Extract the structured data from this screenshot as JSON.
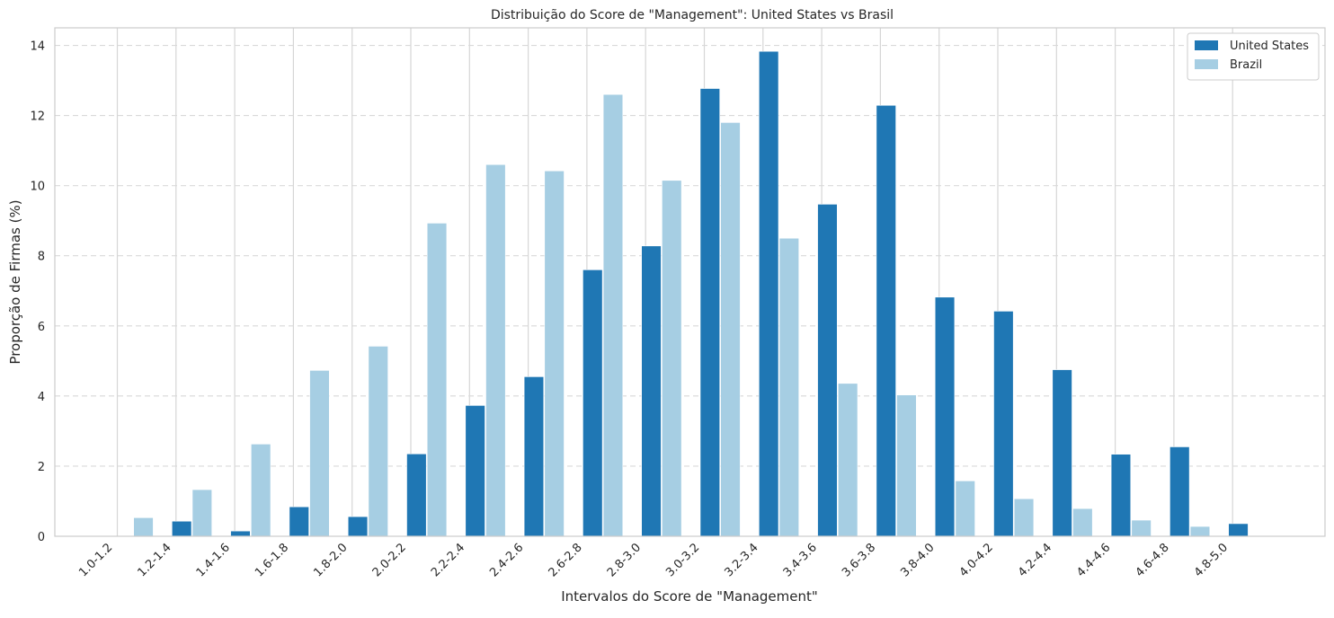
{
  "chart_data": {
    "type": "bar",
    "title": "Distribuição do Score de \"Management\": United States vs Brasil",
    "xlabel": "Intervalos do Score de \"Management\"",
    "ylabel": "Proporção de Firmas (%)",
    "ylim": [
      0,
      14.5
    ],
    "yticks": [
      0,
      2,
      4,
      6,
      8,
      10,
      12,
      14
    ],
    "grid": "y dashed",
    "legend_position": "top-right",
    "categories": [
      "1.0-1.2",
      "1.2-1.4",
      "1.4-1.6",
      "1.6-1.8",
      "1.8-2.0",
      "2.0-2.2",
      "2.2-2.4",
      "2.4-2.6",
      "2.6-2.8",
      "2.8-3.0",
      "3.0-3.2",
      "3.2-3.4",
      "3.4-3.6",
      "3.6-3.8",
      "3.8-4.0",
      "4.0-4.2",
      "4.2-4.4",
      "4.4-4.6",
      "4.6-4.8",
      "4.8-5.0"
    ],
    "series": [
      {
        "name": "United States",
        "color": "#1f77b4",
        "values": [
          0.0,
          0.43,
          0.15,
          0.84,
          0.56,
          2.35,
          3.73,
          4.55,
          7.6,
          8.28,
          12.77,
          13.83,
          9.47,
          12.29,
          6.82,
          6.42,
          4.75,
          2.34,
          2.55,
          0.36
        ]
      },
      {
        "name": "Brazil",
        "color": "#a6cee3",
        "values": [
          0.53,
          1.33,
          2.63,
          4.73,
          5.42,
          8.93,
          10.6,
          10.42,
          12.6,
          10.15,
          11.8,
          8.5,
          4.36,
          4.03,
          1.58,
          1.07,
          0.79,
          0.46,
          0.28,
          0.0
        ]
      }
    ]
  }
}
